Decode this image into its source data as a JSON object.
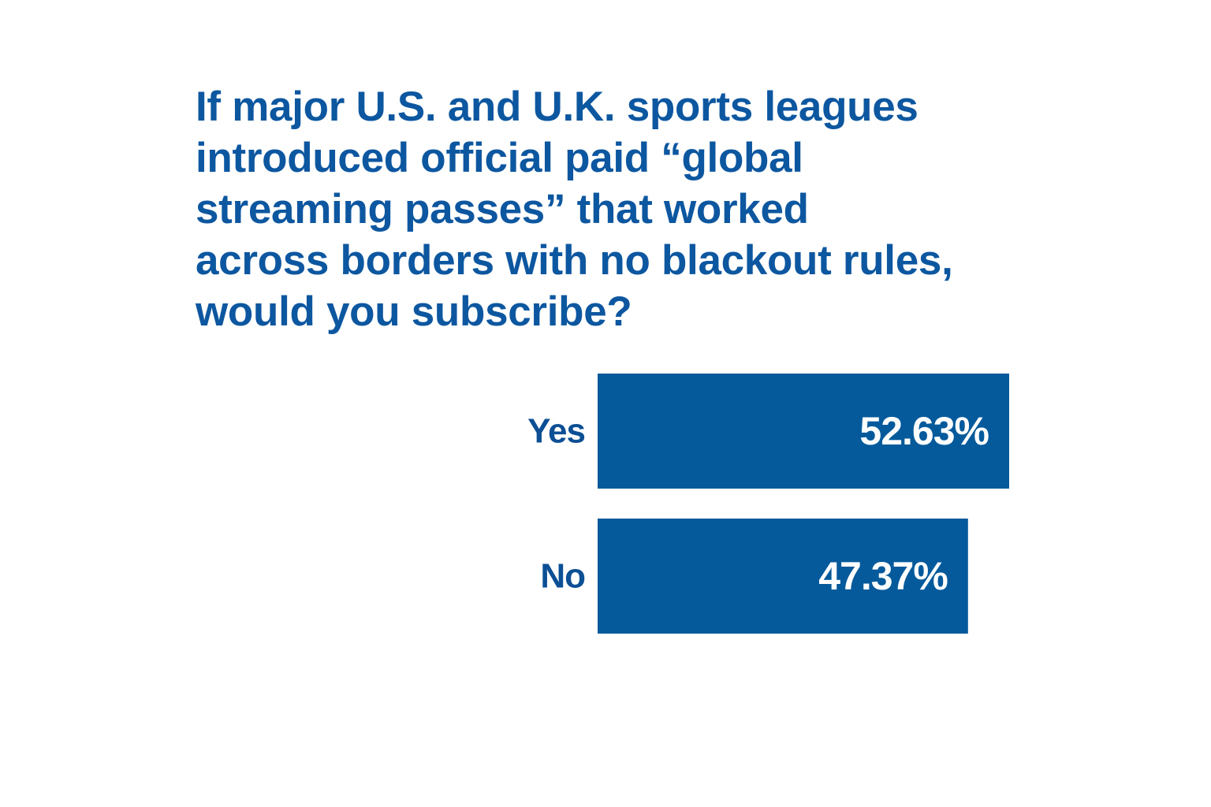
{
  "chart_data": {
    "type": "bar",
    "orientation": "horizontal",
    "title_lines": [
      "If major U.S. and U.K. sports leagues",
      "introduced official paid “global",
      "streaming passes” that worked",
      "across borders with no blackout rules,",
      "would you subscribe?"
    ],
    "categories": [
      "Yes",
      "No"
    ],
    "values": [
      52.63,
      47.37
    ],
    "value_labels": [
      "52.63%",
      "47.37%"
    ],
    "xlim": [
      0,
      52.63
    ],
    "grid": false,
    "legend": "none"
  },
  "colors": {
    "bar": "#055a9b",
    "title": "#0d57a0",
    "category_label": "#0d4f94",
    "value_label": "#ffffff",
    "background": "#ffffff"
  }
}
